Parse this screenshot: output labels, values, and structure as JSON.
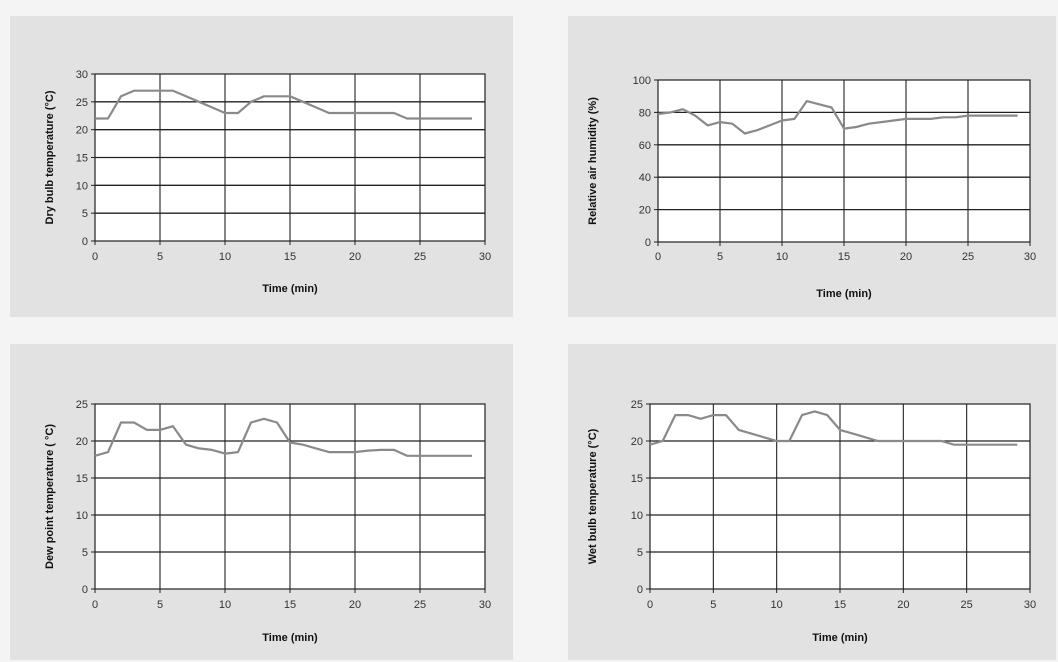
{
  "chart_data": [
    {
      "type": "line",
      "xlabel": "Time (min)",
      "ylabel": "Dry bulb temperature (°C)",
      "xlim": [
        0,
        30
      ],
      "ylim": [
        0,
        30
      ],
      "xticks": [
        0,
        5,
        10,
        15,
        20,
        25,
        30
      ],
      "yticks": [
        0,
        5,
        10,
        15,
        20,
        25,
        30
      ],
      "grid": true,
      "series": [
        {
          "color": "#8a8a8a",
          "x": [
            0,
            1,
            1.5,
            2,
            3,
            4,
            5,
            6,
            7,
            8,
            9,
            10,
            11,
            12,
            13,
            14,
            15,
            16,
            17,
            18,
            19,
            20,
            21,
            22,
            23,
            24,
            25,
            26,
            27,
            28,
            29
          ],
          "y": [
            22,
            22,
            24,
            26,
            27,
            27,
            27,
            27,
            26,
            25,
            24,
            23,
            23,
            25,
            26,
            26,
            26,
            25,
            24,
            23,
            23,
            23,
            23,
            23,
            23,
            22,
            22,
            22,
            22,
            22,
            22
          ]
        }
      ]
    },
    {
      "type": "line",
      "xlabel": "Time (min)",
      "ylabel": "Relative air humidity (%)",
      "xlim": [
        0,
        30
      ],
      "ylim": [
        0,
        100
      ],
      "xticks": [
        0,
        5,
        10,
        15,
        20,
        25,
        30
      ],
      "yticks": [
        0,
        20,
        40,
        60,
        80,
        100
      ],
      "grid": true,
      "series": [
        {
          "color": "#8a8a8a",
          "x": [
            0,
            1,
            2,
            3,
            4,
            5,
            6,
            7,
            8,
            9,
            10,
            11,
            12,
            13,
            14,
            15,
            16,
            17,
            18,
            19,
            20,
            21,
            22,
            23,
            24,
            25,
            26,
            27,
            28,
            29
          ],
          "y": [
            79,
            80,
            82,
            78,
            72,
            74,
            73,
            67,
            69,
            72,
            75,
            76,
            87,
            85,
            83,
            70,
            71,
            73,
            74,
            75,
            76,
            76,
            76,
            77,
            77,
            78,
            78,
            78,
            78,
            78
          ]
        }
      ]
    },
    {
      "type": "line",
      "xlabel": "Time (min)",
      "ylabel": "Dew point temperature ( °C)",
      "xlim": [
        0,
        30
      ],
      "ylim": [
        0,
        25
      ],
      "xticks": [
        0,
        5,
        10,
        15,
        20,
        25,
        30
      ],
      "yticks": [
        0,
        5,
        10,
        15,
        20,
        25
      ],
      "grid": true,
      "series": [
        {
          "color": "#8a8a8a",
          "x": [
            0,
            1,
            2,
            3,
            4,
            5,
            6,
            7,
            8,
            9,
            10,
            11,
            12,
            13,
            14,
            15,
            16,
            17,
            18,
            19,
            20,
            21,
            22,
            23,
            24,
            25,
            26,
            27,
            28,
            29
          ],
          "y": [
            18,
            18.5,
            22.5,
            22.5,
            21.5,
            21.5,
            22,
            19.5,
            19,
            18.8,
            18.3,
            18.5,
            22.5,
            23,
            22.5,
            19.8,
            19.5,
            19,
            18.5,
            18.5,
            18.5,
            18.7,
            18.8,
            18.8,
            18,
            18,
            18,
            18,
            18,
            18
          ]
        }
      ]
    },
    {
      "type": "line",
      "xlabel": "Time (min)",
      "ylabel": "Wet bulb temperature (°C)",
      "xlim": [
        0,
        30
      ],
      "ylim": [
        0,
        25
      ],
      "xticks": [
        0,
        5,
        10,
        15,
        20,
        25,
        30
      ],
      "yticks": [
        0,
        5,
        10,
        15,
        20,
        25
      ],
      "grid": true,
      "series": [
        {
          "color": "#8a8a8a",
          "x": [
            0,
            1,
            2,
            3,
            4,
            5,
            6,
            7,
            8,
            9,
            10,
            11,
            12,
            13,
            14,
            15,
            16,
            17,
            18,
            19,
            20,
            21,
            22,
            23,
            24,
            25,
            26,
            27,
            28,
            29
          ],
          "y": [
            19.5,
            20,
            23.5,
            23.5,
            23,
            23.5,
            23.5,
            21.5,
            21,
            20.5,
            20,
            20,
            23.5,
            24,
            23.5,
            21.5,
            21,
            20.5,
            20,
            20,
            20,
            20,
            20,
            20,
            19.5,
            19.5,
            19.5,
            19.5,
            19.5,
            19.5
          ]
        }
      ]
    }
  ]
}
